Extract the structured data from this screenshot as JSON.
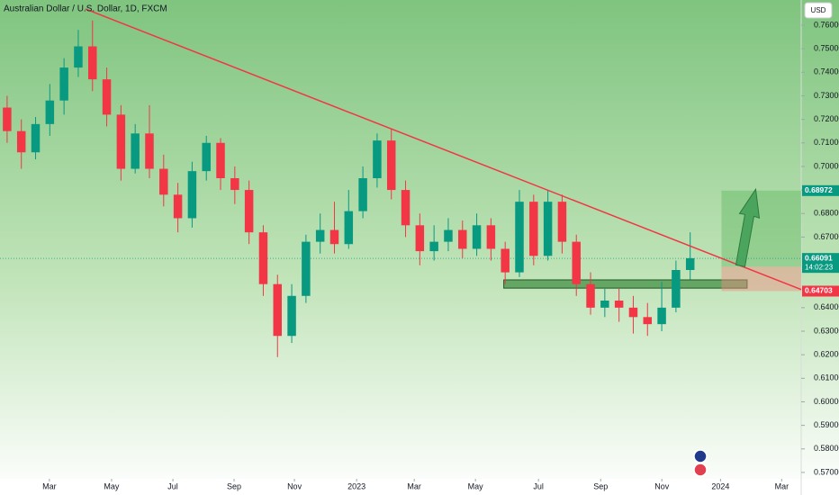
{
  "chart_data": {
    "type": "candlestick",
    "title": "Australian Dollar / U.S. Dollar, 1D, FXCM",
    "currency": "USD",
    "up_color": "#089981",
    "down_color": "#f23645",
    "open": [
      0.725,
      0.715,
      0.706,
      0.718,
      0.728,
      0.742,
      0.751,
      0.737,
      0.722,
      0.699,
      0.714,
      0.699,
      0.688,
      0.678,
      0.698,
      0.71,
      0.695,
      0.69,
      0.672,
      0.65,
      0.628,
      0.645,
      0.668,
      0.673,
      0.667,
      0.681,
      0.695,
      0.711,
      0.69,
      0.675,
      0.664,
      0.668,
      0.673,
      0.665,
      0.675,
      0.665,
      0.655,
      0.685,
      0.662,
      0.685,
      0.668,
      0.65,
      0.64,
      0.643,
      0.64,
      0.636,
      0.633,
      0.64,
      0.656
    ],
    "high": [
      0.73,
      0.72,
      0.721,
      0.735,
      0.746,
      0.758,
      0.762,
      0.742,
      0.726,
      0.718,
      0.726,
      0.705,
      0.693,
      0.702,
      0.713,
      0.712,
      0.7,
      0.694,
      0.675,
      0.654,
      0.65,
      0.671,
      0.68,
      0.685,
      0.69,
      0.7,
      0.714,
      0.716,
      0.694,
      0.68,
      0.675,
      0.678,
      0.677,
      0.68,
      0.678,
      0.668,
      0.69,
      0.688,
      0.69,
      0.688,
      0.671,
      0.655,
      0.648,
      0.648,
      0.645,
      0.642,
      0.651,
      0.66,
      0.672
    ],
    "low": [
      0.71,
      0.699,
      0.703,
      0.713,
      0.722,
      0.738,
      0.732,
      0.717,
      0.694,
      0.697,
      0.695,
      0.683,
      0.672,
      0.674,
      0.694,
      0.69,
      0.684,
      0.667,
      0.645,
      0.619,
      0.625,
      0.642,
      0.663,
      0.663,
      0.665,
      0.678,
      0.691,
      0.686,
      0.67,
      0.658,
      0.66,
      0.664,
      0.661,
      0.662,
      0.66,
      0.65,
      0.653,
      0.658,
      0.66,
      0.663,
      0.645,
      0.637,
      0.636,
      0.634,
      0.629,
      0.628,
      0.63,
      0.638,
      0.652
    ],
    "close": [
      0.715,
      0.706,
      0.718,
      0.728,
      0.742,
      0.751,
      0.737,
      0.722,
      0.699,
      0.714,
      0.699,
      0.688,
      0.678,
      0.698,
      0.71,
      0.695,
      0.69,
      0.672,
      0.65,
      0.628,
      0.645,
      0.668,
      0.673,
      0.667,
      0.681,
      0.695,
      0.711,
      0.69,
      0.675,
      0.664,
      0.668,
      0.673,
      0.665,
      0.675,
      0.665,
      0.655,
      0.685,
      0.662,
      0.685,
      0.668,
      0.65,
      0.64,
      0.643,
      0.64,
      0.636,
      0.633,
      0.64,
      0.656,
      0.661
    ],
    "xlim": [
      -0.5,
      55.8
    ],
    "xticks": [
      {
        "value": 2.97,
        "label": "Mar"
      },
      {
        "value": 7.34,
        "label": "May"
      },
      {
        "value": 11.65,
        "label": "Jul"
      },
      {
        "value": 15.95,
        "label": "Sep"
      },
      {
        "value": 20.19,
        "label": "Nov"
      },
      {
        "value": 24.56,
        "label": "2023"
      },
      {
        "value": 28.61,
        "label": "Mar"
      },
      {
        "value": 32.91,
        "label": "May"
      },
      {
        "value": 37.34,
        "label": "Jul"
      },
      {
        "value": 41.71,
        "label": "Sep"
      },
      {
        "value": 46.01,
        "label": "Nov"
      },
      {
        "value": 50.13,
        "label": "2024"
      },
      {
        "value": 54.43,
        "label": "Mar"
      }
    ],
    "ylim": [
      0.5673,
      0.7707
    ],
    "yticks": [
      {
        "value": 0.57,
        "label": "0.57000"
      },
      {
        "value": 0.58,
        "label": "0.58000"
      },
      {
        "value": 0.59,
        "label": "0.59000"
      },
      {
        "value": 0.6,
        "label": "0.60000"
      },
      {
        "value": 0.61,
        "label": "0.61000"
      },
      {
        "value": 0.62,
        "label": "0.62000"
      },
      {
        "value": 0.63,
        "label": "0.63000"
      },
      {
        "value": 0.64,
        "label": "0.64000"
      },
      {
        "value": 0.67,
        "label": "0.67000"
      },
      {
        "value": 0.68,
        "label": "0.68000"
      },
      {
        "value": 0.69,
        "label": "0.69000"
      },
      {
        "value": 0.7,
        "label": "0.70000"
      },
      {
        "value": 0.71,
        "label": "0.71000"
      },
      {
        "value": 0.72,
        "label": "0.72000"
      },
      {
        "value": 0.73,
        "label": "0.73000"
      },
      {
        "value": 0.74,
        "label": "0.74000"
      },
      {
        "value": 0.75,
        "label": "0.75000"
      },
      {
        "value": 0.76,
        "label": "0.76000"
      }
    ],
    "trendline": {
      "x": [
        5.5,
        55.8
      ],
      "y": [
        0.7669,
        0.6477
      ],
      "color": "#f23645"
    },
    "support_zone": {
      "x": [
        34.9,
        52.0
      ],
      "y": [
        0.6483,
        0.6518
      ]
    },
    "position": {
      "x": [
        50.2,
        55.8
      ],
      "target": 0.68972,
      "entry": 0.65741,
      "stop": 0.64703
    },
    "last_price": 0.66091,
    "countdown": "14:02:23"
  }
}
